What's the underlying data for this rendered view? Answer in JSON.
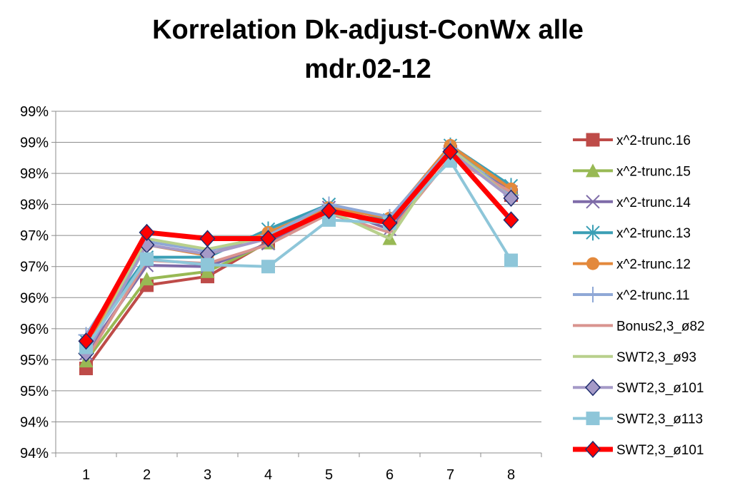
{
  "chart_data": {
    "type": "line",
    "title_lines": [
      "Korrelation Dk-adjust-ConWx alle",
      "mdr.02-12"
    ],
    "xlabel": "",
    "ylabel": "",
    "categories": [
      "1",
      "2",
      "3",
      "4",
      "5",
      "6",
      "7",
      "8"
    ],
    "ylim": [
      0.94,
      0.995
    ],
    "y_ticks": [
      0.94,
      0.945,
      0.95,
      0.955,
      0.96,
      0.965,
      0.97,
      0.975,
      0.98,
      0.985,
      0.99,
      0.995
    ],
    "y_tick_labels": [
      "94%",
      "94%",
      "95%",
      "95%",
      "96%",
      "96%",
      "97%",
      "97%",
      "98%",
      "98%",
      "99%",
      "99%"
    ],
    "grid": "horizontal",
    "legend_position": "right",
    "series": [
      {
        "name": "x^2-trunc.16",
        "color": "#be4b48",
        "marker": "square",
        "width": 4,
        "values": [
          0.9536,
          0.967,
          0.9684,
          0.974,
          0.979,
          0.977,
          0.9885,
          0.9815
        ]
      },
      {
        "name": "x^2-trunc.15",
        "color": "#98b954",
        "marker": "triangle",
        "width": 4,
        "values": [
          0.9548,
          0.968,
          0.9692,
          0.9738,
          0.979,
          0.9745,
          0.9892,
          0.9825
        ]
      },
      {
        "name": "x^2-trunc.14",
        "color": "#7e6ba8",
        "marker": "x",
        "width": 4,
        "values": [
          0.956,
          0.9702,
          0.97,
          0.9737,
          0.9795,
          0.976,
          0.9885,
          0.982
        ]
      },
      {
        "name": "x^2-trunc.13",
        "color": "#3b9fb5",
        "marker": "asterisk",
        "width": 4,
        "values": [
          0.958,
          0.9715,
          0.9715,
          0.976,
          0.98,
          0.9775,
          0.9895,
          0.983
        ]
      },
      {
        "name": "x^2-trunc.12",
        "color": "#e3893c",
        "marker": "circle",
        "width": 4,
        "values": [
          0.9575,
          0.9735,
          0.9718,
          0.9755,
          0.9795,
          0.9778,
          0.9895,
          0.9825
        ]
      },
      {
        "name": "x^2-trunc.11",
        "color": "#8fa8d6",
        "marker": "plus",
        "width": 4,
        "values": [
          0.959,
          0.974,
          0.9725,
          0.975,
          0.98,
          0.978,
          0.989,
          0.9815
        ]
      },
      {
        "name": "Bonus2,3_ø82",
        "color": "#d9948f",
        "marker": "none",
        "width": 4,
        "values": [
          0.955,
          0.971,
          0.9705,
          0.9735,
          0.9785,
          0.9755,
          0.9875,
          0.982
        ]
      },
      {
        "name": "SWT2,3_ø93",
        "color": "#b8d08c",
        "marker": "none",
        "width": 4,
        "values": [
          0.956,
          0.9745,
          0.9728,
          0.9748,
          0.979,
          0.9745,
          0.989,
          0.981
        ]
      },
      {
        "name": "SWT2,3_ø101",
        "color": "#a59ac7",
        "marker": "diamond",
        "width": 4,
        "values": [
          0.956,
          0.9735,
          0.972,
          0.9745,
          0.979,
          0.9772,
          0.9885,
          0.981
        ]
      },
      {
        "name": "SWT2,3_ø113",
        "color": "#8ec6d9",
        "marker": "square",
        "width": 4,
        "values": [
          0.957,
          0.9712,
          0.9703,
          0.97,
          0.9775,
          0.977,
          0.987,
          0.971
        ]
      },
      {
        "name": "SWT2,3_ø101",
        "color": "#ff0000",
        "marker": "diamond",
        "width": 7,
        "values": [
          0.958,
          0.9755,
          0.9745,
          0.9745,
          0.979,
          0.977,
          0.9885,
          0.9775
        ]
      }
    ]
  }
}
